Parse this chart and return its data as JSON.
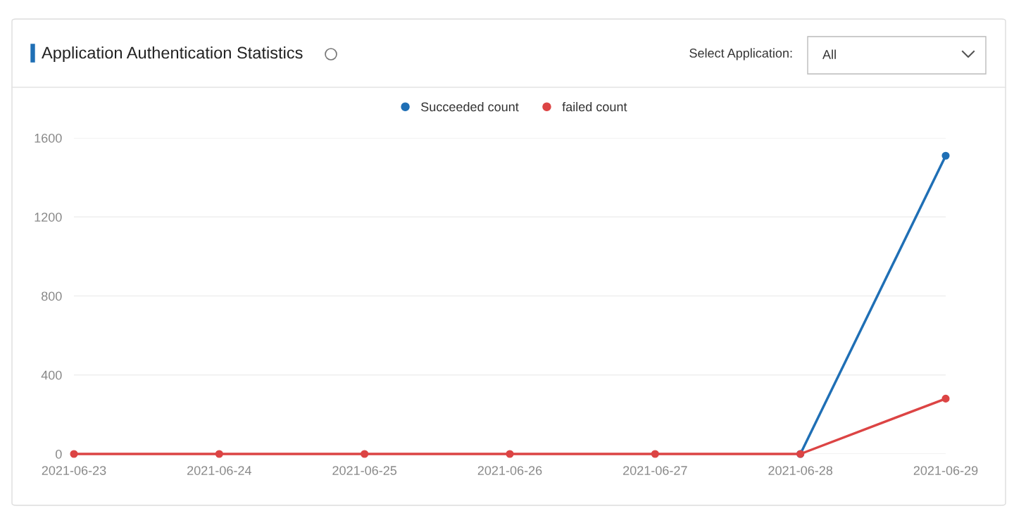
{
  "chart_data": {
    "type": "line",
    "title": "Application Authentication Statistics",
    "annotations": [
      "Select Application:",
      "All"
    ],
    "categories": [
      "2021-06-23",
      "2021-06-24",
      "2021-06-25",
      "2021-06-26",
      "2021-06-27",
      "2021-06-28",
      "2021-06-29"
    ],
    "series": [
      {
        "name": "Succeeded count",
        "color": "#1f6fb5",
        "values": [
          null,
          null,
          null,
          null,
          null,
          0,
          1510
        ]
      },
      {
        "name": "failed count",
        "color": "#dc4444",
        "values": [
          0,
          0,
          0,
          0,
          0,
          0,
          280
        ]
      }
    ],
    "ylim": [
      0,
      1600
    ],
    "yticks": [
      0,
      400,
      800,
      1200,
      1600
    ],
    "grid": "y",
    "legend": "top",
    "marker": "circle",
    "line_style": "solid"
  }
}
